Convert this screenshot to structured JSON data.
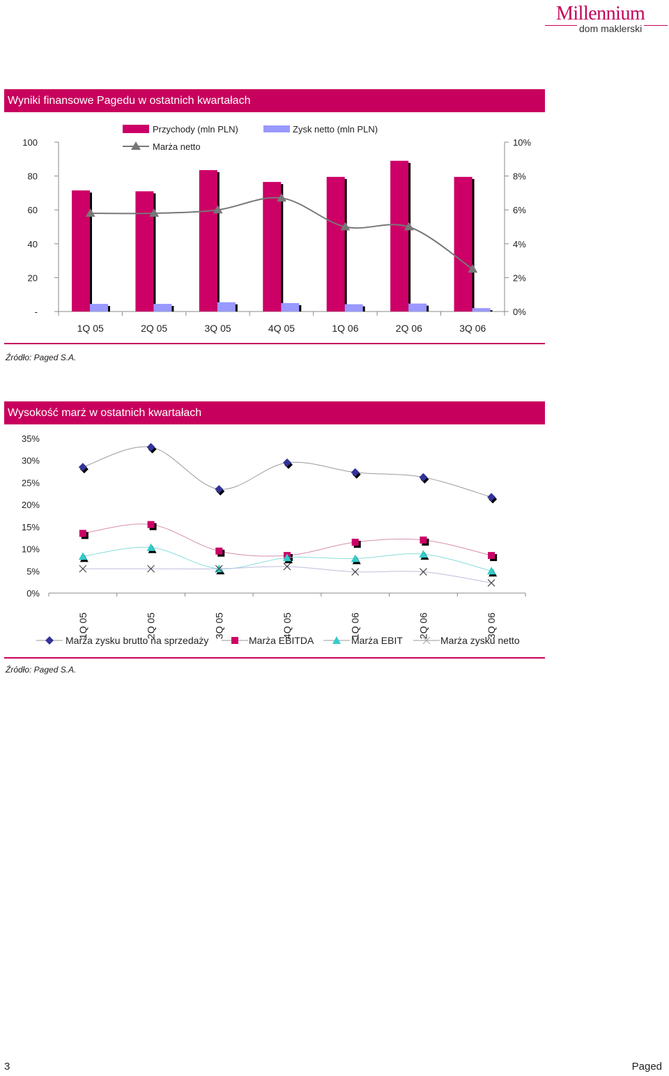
{
  "logo": {
    "name": "Millennium",
    "sub": "dom maklerski"
  },
  "section1": {
    "title": "Wyniki finansowe Pagedu w ostatnich kwartałach",
    "source": "Źródło: Paged S.A."
  },
  "section2": {
    "title": "Wysokość marż w ostatnich kwartałach",
    "source": "Źródło: Paged S.A."
  },
  "footer": {
    "page_number": "3",
    "company": "Paged"
  },
  "colors": {
    "accent": "#c8005d",
    "revenue": "#cc0066",
    "profit": "#9999ff",
    "margin_line": "#777777",
    "gross": "#333399",
    "ebitda": "#cc0066",
    "ebit": "#33cccc",
    "net": "#9999cc"
  },
  "chart_data": [
    {
      "type": "bar",
      "categories": [
        "1Q 05",
        "2Q 05",
        "3Q 05",
        "4Q 05",
        "1Q 06",
        "2Q 06",
        "3Q 06"
      ],
      "y_ticks": [
        "-",
        "20",
        "40",
        "60",
        "80",
        "100"
      ],
      "y2_ticks": [
        "0%",
        "2%",
        "4%",
        "6%",
        "8%",
        "10%"
      ],
      "ylim": [
        0,
        100
      ],
      "y2lim": [
        0,
        0.1
      ],
      "series": [
        {
          "name": "Przychody (mln PLN)",
          "kind": "bar",
          "axis": "left",
          "values": [
            71.5,
            71.0,
            83.5,
            76.5,
            79.5,
            89.0,
            79.5
          ]
        },
        {
          "name": "Zysk netto (mln PLN)",
          "kind": "bar",
          "axis": "left",
          "values": [
            4.5,
            4.5,
            5.5,
            5.0,
            4.3,
            4.7,
            2.0
          ]
        },
        {
          "name": "Marża netto",
          "kind": "line",
          "axis": "right",
          "marker": "triangle",
          "values": [
            0.058,
            0.058,
            0.06,
            0.067,
            0.05,
            0.05,
            0.025
          ]
        }
      ],
      "legend": "top"
    },
    {
      "type": "line",
      "categories": [
        "1Q 05",
        "2Q 05",
        "3Q 05",
        "4Q 05",
        "1Q 06",
        "2Q 06",
        "3Q 06"
      ],
      "y_ticks": [
        "0%",
        "5%",
        "10%",
        "15%",
        "20%",
        "25%",
        "30%",
        "35%"
      ],
      "ylim": [
        0,
        0.35
      ],
      "series": [
        {
          "name": "Marża zysku brutto na sprzedaży",
          "marker": "diamond",
          "values": [
            0.285,
            0.33,
            0.235,
            0.295,
            0.273,
            0.262,
            0.217
          ]
        },
        {
          "name": "Marża EBITDA",
          "marker": "square",
          "values": [
            0.135,
            0.155,
            0.095,
            0.085,
            0.115,
            0.12,
            0.085
          ]
        },
        {
          "name": "Marża EBIT",
          "marker": "triangle",
          "values": [
            0.083,
            0.103,
            0.055,
            0.08,
            0.078,
            0.088,
            0.05
          ]
        },
        {
          "name": "Marża zysku netto",
          "marker": "x",
          "values": [
            0.055,
            0.055,
            0.055,
            0.06,
            0.048,
            0.048,
            0.023
          ]
        }
      ],
      "legend": "bottom"
    }
  ]
}
